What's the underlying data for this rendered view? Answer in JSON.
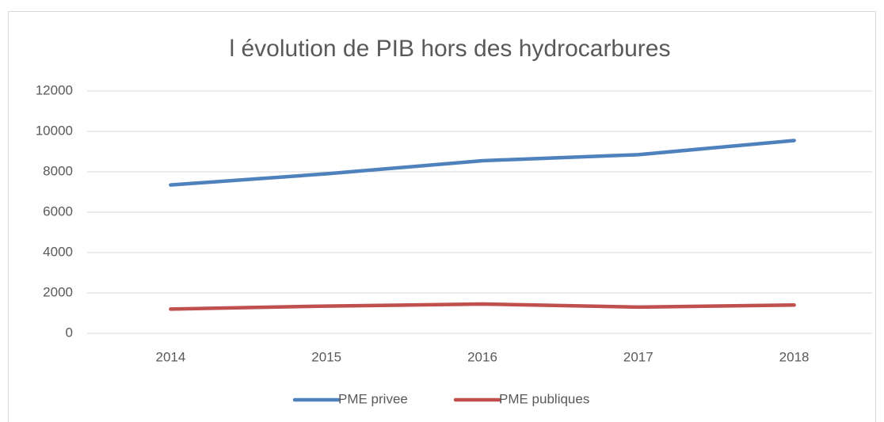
{
  "chart_data": {
    "type": "line",
    "title": "l évolution de PIB hors des hydrocarbures",
    "categories": [
      "2014",
      "2015",
      "2016",
      "2017",
      "2018"
    ],
    "series": [
      {
        "name": "PME privee",
        "color": "#4f81bd",
        "values": [
          7350,
          7900,
          8550,
          8850,
          9550
        ]
      },
      {
        "name": "PME publiques",
        "color": "#c0504d",
        "values": [
          1200,
          1350,
          1450,
          1300,
          1400
        ]
      }
    ],
    "ylim": [
      0,
      12000
    ],
    "yticks": [
      0,
      2000,
      4000,
      6000,
      8000,
      10000,
      12000
    ],
    "grid": true,
    "legend": "bottom"
  }
}
